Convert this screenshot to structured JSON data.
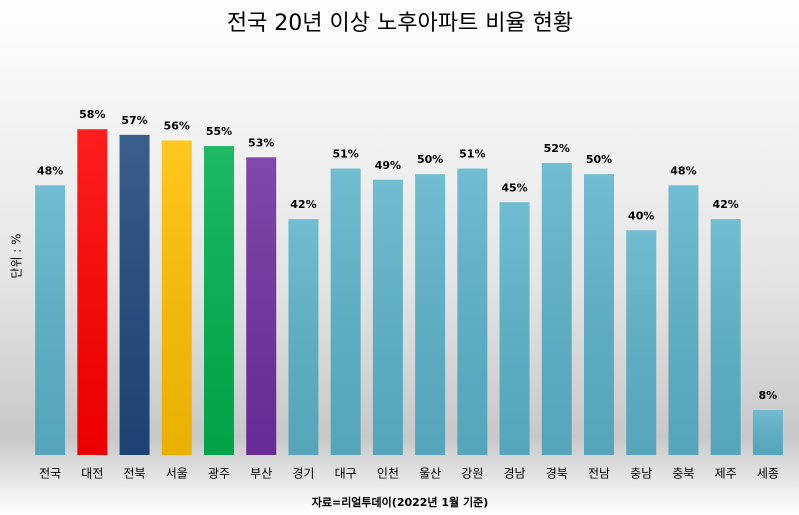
{
  "chart_data": {
    "type": "bar",
    "title": "전국 20년 이상 노후아파트 비율 현황",
    "y_label": "단위 : %",
    "source": "자료=리얼투데이(2022년 1월 기준)",
    "categories": [
      "전국",
      "대전",
      "전북",
      "서울",
      "광주",
      "부산",
      "경기",
      "대구",
      "인천",
      "울산",
      "강원",
      "경남",
      "경북",
      "전남",
      "충남",
      "충북",
      "제주",
      "세종"
    ],
    "values": [
      48,
      58,
      57,
      56,
      55,
      53,
      42,
      51,
      49,
      50,
      51,
      45,
      52,
      50,
      40,
      48,
      42,
      8
    ],
    "value_labels": [
      "48%",
      "58%",
      "57%",
      "56%",
      "55%",
      "53%",
      "42%",
      "51%",
      "49%",
      "50%",
      "51%",
      "45%",
      "52%",
      "50%",
      "40%",
      "48%",
      "42%",
      "8%"
    ],
    "colors": [
      "#5db3ca",
      "#ff0000",
      "#1f497d",
      "#ffc000",
      "#00b050",
      "#7030a0",
      "#5db3ca",
      "#5db3ca",
      "#5db3ca",
      "#5db3ca",
      "#5db3ca",
      "#5db3ca",
      "#5db3ca",
      "#5db3ca",
      "#5db3ca",
      "#5db3ca",
      "#5db3ca",
      "#5db3ca"
    ],
    "ylim": [
      0,
      60
    ]
  }
}
